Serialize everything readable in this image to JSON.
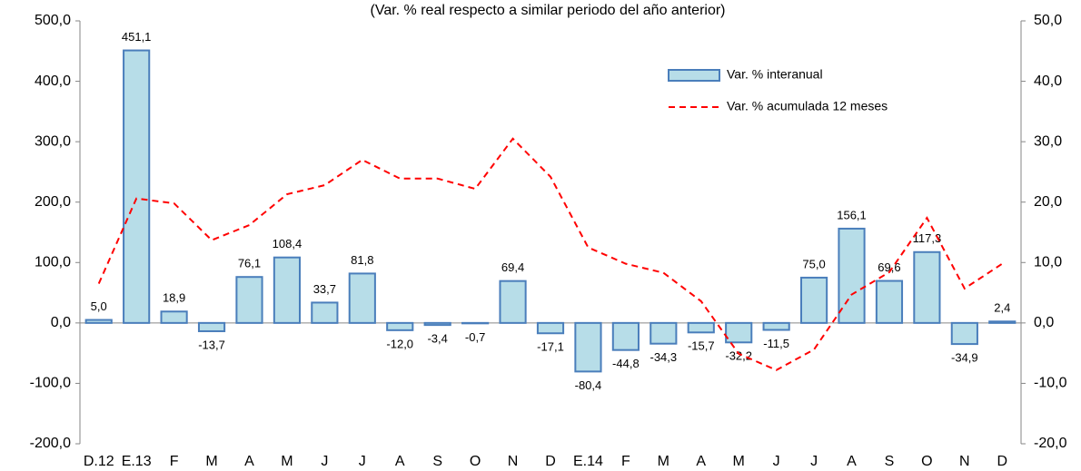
{
  "chart_data": {
    "type": "bar",
    "subtitle": "(Var. % real respecto a similar periodo del año anterior)",
    "categories": [
      "D.12",
      "E.13",
      "F",
      "M",
      "A",
      "M",
      "J",
      "J",
      "A",
      "S",
      "O",
      "N",
      "D",
      "E.14",
      "F",
      "M",
      "A",
      "M",
      "J",
      "J",
      "A",
      "S",
      "O",
      "N",
      "D"
    ],
    "series": [
      {
        "name": "Var. % interanual",
        "type": "bar",
        "color": "#b7dde8",
        "stroke": "#4a7ebb",
        "values": [
          5.0,
          451.1,
          18.9,
          -13.7,
          76.1,
          108.4,
          33.7,
          81.8,
          -12.0,
          -3.4,
          -0.7,
          69.4,
          -17.1,
          -80.4,
          -44.8,
          -34.3,
          -15.7,
          -32.2,
          -11.5,
          75.0,
          156.1,
          69.6,
          117.3,
          -34.9,
          2.4
        ],
        "value_labels": [
          "5,0",
          "451,1",
          "18,9",
          "-13,7",
          "76,1",
          "108,4",
          "33,7",
          "81,8",
          "-12,0",
          "-3,4",
          "-0,7",
          "69,4",
          "-17,1",
          "-80,4",
          "-44,8",
          "-34,3",
          "-15,7",
          "-32,2",
          "-11,5",
          "75,0",
          "156,1",
          "69,6",
          "117,3",
          "-34,9",
          "2,4"
        ]
      },
      {
        "name": "Var. % acumulada 12 meses",
        "type": "line",
        "axis": "y2",
        "color": "#ff0000",
        "dash": "dashed",
        "values": [
          6.5,
          20.6,
          19.8,
          13.7,
          16.2,
          21.3,
          22.8,
          27.0,
          23.9,
          23.9,
          22.2,
          30.5,
          24.2,
          12.5,
          9.8,
          8.3,
          3.6,
          -5.1,
          -7.8,
          -4.4,
          4.7,
          8.4,
          17.4,
          5.7,
          9.8
        ]
      }
    ],
    "ylim": [
      -200,
      500
    ],
    "yticks": [
      {
        "value": -200,
        "label": "-200,0"
      },
      {
        "value": -100,
        "label": "-100,0"
      },
      {
        "value": 0,
        "label": "0,0"
      },
      {
        "value": 100,
        "label": "100,0"
      },
      {
        "value": 200,
        "label": "200,0"
      },
      {
        "value": 300,
        "label": "300,0"
      },
      {
        "value": 400,
        "label": "400,0"
      },
      {
        "value": 500,
        "label": "500,0"
      }
    ],
    "y2lim": [
      -20,
      50
    ],
    "y2ticks": [
      {
        "value": -20,
        "label": "-20,0"
      },
      {
        "value": -10,
        "label": "-10,0"
      },
      {
        "value": 0,
        "label": "0,0"
      },
      {
        "value": 10,
        "label": "10,0"
      },
      {
        "value": 20,
        "label": "20,0"
      },
      {
        "value": 30,
        "label": "30,0"
      },
      {
        "value": 40,
        "label": "40,0"
      },
      {
        "value": 50,
        "label": "50,0"
      }
    ],
    "legend": "upper right"
  }
}
